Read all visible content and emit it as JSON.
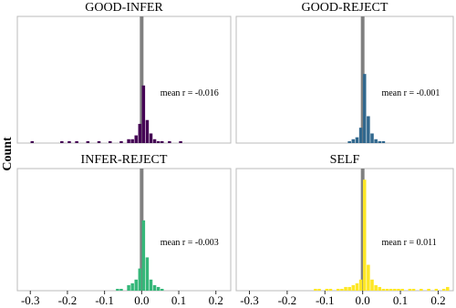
{
  "ylabel": "Count",
  "chart_data": [
    {
      "type": "histogram",
      "title": "GOOD-INFER",
      "annotation": "mean r = -0.016",
      "color": "#440154",
      "bins": [
        -0.3,
        -0.29,
        -0.28,
        -0.27,
        -0.26,
        -0.25,
        -0.24,
        -0.23,
        -0.22,
        -0.21,
        -0.2,
        -0.19,
        -0.18,
        -0.17,
        -0.16,
        -0.15,
        -0.14,
        -0.13,
        -0.12,
        -0.11,
        -0.1,
        -0.09,
        -0.08,
        -0.07,
        -0.06,
        -0.05,
        -0.04,
        -0.03,
        -0.02,
        -0.01,
        0,
        0.01,
        0.02,
        0.03,
        0.04,
        0.05,
        0.06,
        0.07,
        0.08,
        0.09,
        0.1,
        0.11
      ],
      "counts": [
        1,
        0,
        0,
        0,
        0,
        0,
        0,
        0,
        1,
        0,
        1,
        0,
        1,
        0,
        0,
        1,
        0,
        0,
        1,
        0,
        0,
        1,
        0,
        0,
        1,
        0,
        2,
        2,
        4,
        10,
        30,
        12,
        5,
        2,
        1,
        1,
        0,
        1,
        0,
        0,
        1
      ],
      "vline": 0,
      "xlim": [
        -0.335,
        0.24
      ],
      "ylim": [
        0,
        66
      ]
    },
    {
      "type": "histogram",
      "title": "GOOD-REJECT",
      "annotation": "mean r = -0.001",
      "color": "#31688e",
      "bins": [
        -0.04,
        -0.03,
        -0.02,
        -0.01,
        0,
        0.01,
        0.02,
        0.03,
        0.04,
        0.05,
        0.06
      ],
      "counts": [
        1,
        2,
        3,
        8,
        36,
        14,
        5,
        2,
        1,
        1
      ],
      "vline": 0,
      "xlim": [
        -0.335,
        0.24
      ],
      "ylim": [
        0,
        66
      ]
    },
    {
      "type": "histogram",
      "title": "INFER-REJECT",
      "annotation": "mean r = -0.003",
      "color": "#35b779",
      "bins": [
        -0.07,
        -0.06,
        -0.05,
        -0.04,
        -0.03,
        -0.02,
        -0.01,
        0,
        0.01,
        0.02,
        0.03,
        0.04,
        0.05,
        0.06
      ],
      "counts": [
        1,
        1,
        0,
        3,
        4,
        6,
        12,
        38,
        18,
        6,
        3,
        2,
        1
      ],
      "vline": 0,
      "xlim": [
        -0.335,
        0.24
      ],
      "ylim": [
        0,
        66
      ],
      "xticks": [
        -0.3,
        -0.2,
        -0.1,
        {
          "value": 0,
          "label": "0.0"
        },
        0.1,
        0.2
      ]
    },
    {
      "type": "histogram",
      "title": "SELF",
      "annotation": "mean r = 0.011",
      "color": "#fde725",
      "bins": [
        -0.13,
        -0.12,
        -0.11,
        -0.1,
        -0.09,
        -0.08,
        -0.07,
        -0.06,
        -0.05,
        -0.04,
        -0.03,
        -0.02,
        -0.01,
        0,
        0.01,
        0.02,
        0.03,
        0.04,
        0.05,
        0.06,
        0.07,
        0.08,
        0.09,
        0.1,
        0.11,
        0.12,
        0.13,
        0.14,
        0.15,
        0.16,
        0.17,
        0.18,
        0.19,
        0.2,
        0.21,
        0.22,
        0.23
      ],
      "counts": [
        1,
        1,
        0,
        1,
        1,
        0,
        1,
        1,
        2,
        2,
        3,
        4,
        6,
        60,
        14,
        6,
        3,
        2,
        1,
        1,
        1,
        1,
        1,
        1,
        0,
        1,
        1,
        0,
        1,
        0,
        1,
        0,
        1,
        0,
        1,
        2
      ],
      "vline": 0,
      "xlim": [
        -0.335,
        0.24
      ],
      "ylim": [
        0,
        66
      ],
      "xticks": [
        -0.3,
        -0.2,
        -0.1,
        {
          "value": 0,
          "label": "0.0"
        },
        0.1,
        0.2
      ]
    }
  ]
}
